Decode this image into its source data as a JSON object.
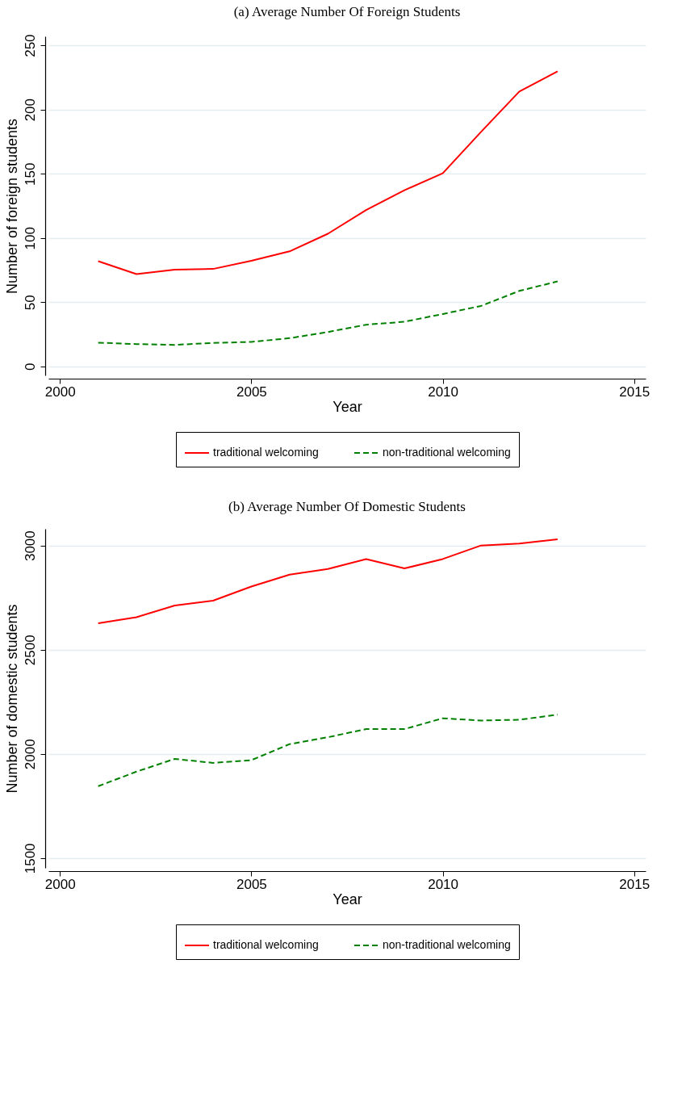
{
  "chart_data": [
    {
      "type": "line",
      "title": "(a) Average Number Of Foreign Students",
      "xlabel": "Year",
      "ylabel": "Number of foreign students",
      "x": [
        2001,
        2002,
        2003,
        2004,
        2005,
        2006,
        2007,
        2008,
        2009,
        2010,
        2011,
        2012,
        2013
      ],
      "xlim": [
        1999.7,
        2015.3
      ],
      "xticks": [
        2000,
        2005,
        2010,
        2015
      ],
      "ylim": [
        -7,
        257
      ],
      "yticks": [
        0,
        50,
        100,
        150,
        200,
        250
      ],
      "grid": "y",
      "legend": "bottom",
      "marker": "none",
      "series": [
        {
          "name": "traditional welcoming",
          "color": "#ff0000",
          "line_style": "solid",
          "values": [
            81.9,
            71.9,
            75.3,
            75.9,
            82.2,
            89.6,
            103.3,
            121.8,
            137.2,
            150.4,
            182.6,
            214,
            229.7
          ]
        },
        {
          "name": "non-traditional welcoming",
          "color": "#008000",
          "line_style": "dashed",
          "values": [
            18.5,
            17.4,
            16.8,
            18.3,
            19.1,
            22,
            26.8,
            32.5,
            34.8,
            40.8,
            47.1,
            58.8,
            66.2
          ]
        }
      ]
    },
    {
      "type": "line",
      "title": "(b) Average Number Of Domestic Students",
      "xlabel": "Year",
      "ylabel": "Number of domestic students",
      "x": [
        2001,
        2002,
        2003,
        2004,
        2005,
        2006,
        2007,
        2008,
        2009,
        2010,
        2011,
        2012,
        2013
      ],
      "xlim": [
        1999.7,
        2015.3
      ],
      "xticks": [
        2000,
        2005,
        2010,
        2015
      ],
      "ylim": [
        1453,
        3080
      ],
      "yticks": [
        1500,
        2000,
        2500,
        3000
      ],
      "grid": "y",
      "legend": "bottom",
      "marker": "none",
      "series": [
        {
          "name": "traditional welcoming",
          "color": "#ff0000",
          "line_style": "solid",
          "values": [
            2627,
            2656,
            2712,
            2735,
            2803,
            2860,
            2887,
            2935,
            2890,
            2935,
            3000,
            3009,
            3030
          ]
        },
        {
          "name": "non-traditional welcoming",
          "color": "#008000",
          "line_style": "dashed",
          "values": [
            1845,
            1915,
            1976,
            1957,
            1970,
            2047,
            2080,
            2119,
            2119,
            2171,
            2160,
            2164,
            2188
          ]
        }
      ]
    }
  ]
}
